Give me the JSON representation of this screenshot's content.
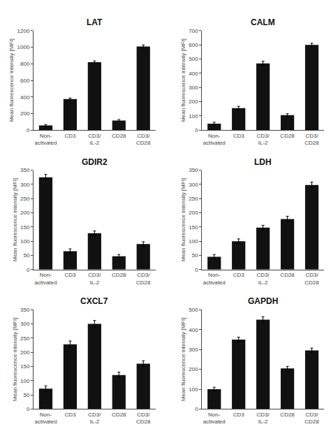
{
  "chart_data": [
    {
      "type": "bar",
      "title": "LAT",
      "ylabel": "Mean fluorescence intensity [MFI]",
      "categories": [
        "Non-\nactivated",
        "CD3",
        "CD3/\nIL-2",
        "CD28",
        "CD3/\nCD28"
      ],
      "values": [
        55,
        375,
        820,
        115,
        1010
      ],
      "errors": [
        12,
        12,
        15,
        12,
        18
      ],
      "color": "#111111",
      "ylim": [
        0,
        1200
      ],
      "yticks": [
        0,
        200,
        400,
        600,
        800,
        1000,
        1200
      ],
      "grid": false
    },
    {
      "type": "bar",
      "title": "CALM",
      "ylabel": "Mean fluorescence intensity [MFI]",
      "categories": [
        "Non-\nactivated",
        "CD3",
        "CD3/\nIL-2",
        "CD28",
        "CD3/\nCD28"
      ],
      "values": [
        45,
        155,
        470,
        105,
        600
      ],
      "errors": [
        10,
        12,
        15,
        10,
        12
      ],
      "color": "#111111",
      "ylim": [
        0,
        700
      ],
      "yticks": [
        0,
        100,
        200,
        300,
        400,
        500,
        600,
        700
      ],
      "grid": false
    },
    {
      "type": "bar",
      "title": "GDIR2",
      "ylabel": "Mean fluorescence intensity [MFI]",
      "categories": [
        "Non-\nactivated",
        "CD3",
        "CD3/\nIL-2",
        "CD28",
        "CD3/\nCD28"
      ],
      "values": [
        325,
        65,
        128,
        47,
        90
      ],
      "errors": [
        10,
        8,
        8,
        6,
        8
      ],
      "color": "#111111",
      "ylim": [
        0,
        350
      ],
      "yticks": [
        0,
        50,
        100,
        150,
        200,
        250,
        300,
        350
      ],
      "grid": false
    },
    {
      "type": "bar",
      "title": "LDH",
      "ylabel": "Mean fluorescence intensity [MFI]",
      "categories": [
        "Non-\nactivated",
        "CD3",
        "CD3/\nIL-2",
        "CD28",
        "CD3/\nCD28"
      ],
      "values": [
        45,
        100,
        148,
        178,
        298
      ],
      "errors": [
        8,
        8,
        8,
        10,
        10
      ],
      "color": "#111111",
      "ylim": [
        0,
        350
      ],
      "yticks": [
        0,
        50,
        100,
        150,
        200,
        250,
        300,
        350
      ],
      "grid": false
    },
    {
      "type": "bar",
      "title": "CXCL7",
      "ylabel": "Mean fluorescence intensity [MFI]",
      "categories": [
        "Non-\nactivated",
        "CD3",
        "CD3/\nIL-2",
        "CD28",
        "CD3/\nCD28"
      ],
      "values": [
        72,
        228,
        300,
        120,
        160
      ],
      "errors": [
        10,
        12,
        12,
        10,
        10
      ],
      "color": "#111111",
      "ylim": [
        0,
        350
      ],
      "yticks": [
        0,
        50,
        100,
        150,
        200,
        250,
        300,
        350
      ],
      "grid": false
    },
    {
      "type": "bar",
      "title": "GAPDH",
      "ylabel": "Mean fluorescence intensity [MFI]",
      "categories": [
        "Non-\nactivated",
        "CD3",
        "CD3/\nIL-2",
        "CD28",
        "CD3/\nCD28"
      ],
      "values": [
        100,
        350,
        450,
        205,
        295
      ],
      "errors": [
        10,
        12,
        15,
        10,
        12
      ],
      "color": "#111111",
      "ylim": [
        0,
        500
      ],
      "yticks": [
        0,
        100,
        200,
        300,
        400,
        500
      ],
      "grid": false
    }
  ]
}
